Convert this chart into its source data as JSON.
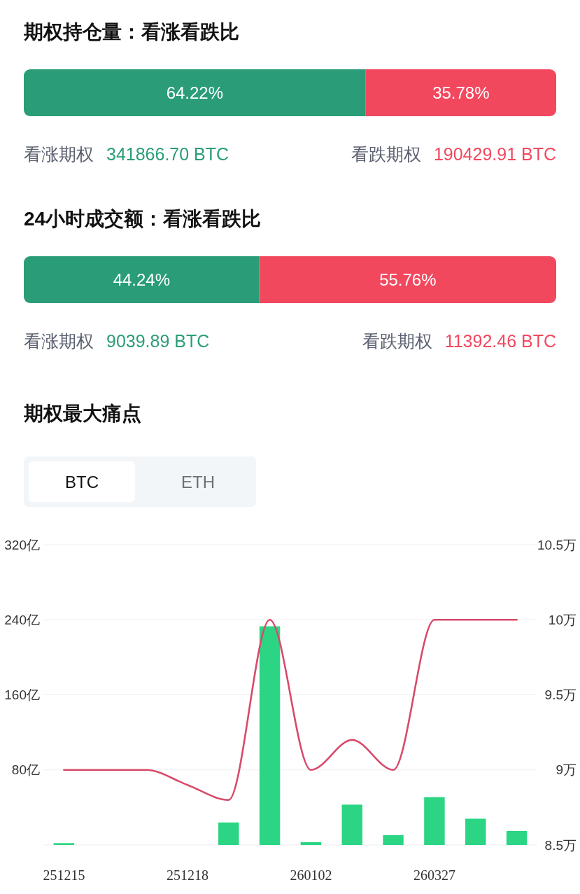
{
  "chart_data": [
    {
      "type": "bar",
      "orientation": "horizontal",
      "stacked": true,
      "title": "期权持仓量：看涨看跌比",
      "categories": [
        null
      ],
      "xlim": [
        0,
        100
      ],
      "series": [
        {
          "color": "#2a9d78",
          "values": [
            64.22
          ],
          "value_labels": [
            "64.22%"
          ]
        },
        {
          "color": "#f2485e",
          "values": [
            35.78
          ],
          "value_labels": [
            "35.78%"
          ]
        }
      ],
      "annotations": [
        "看涨期权",
        "341866.70 BTC",
        "看跌期权",
        "190429.91 BTC"
      ]
    },
    {
      "type": "bar",
      "orientation": "horizontal",
      "stacked": true,
      "title": "24小时成交额：看涨看跌比",
      "categories": [
        null
      ],
      "xlim": [
        0,
        100
      ],
      "series": [
        {
          "color": "#2a9d78",
          "values": [
            44.24
          ],
          "value_labels": [
            "44.24%"
          ]
        },
        {
          "color": "#f2485e",
          "values": [
            55.76
          ],
          "value_labels": [
            "55.76%"
          ]
        }
      ],
      "annotations": [
        "看涨期权",
        "9039.89 BTC",
        "看跌期权",
        "11392.46 BTC"
      ]
    },
    {
      "type": "bar",
      "title": "期权最大痛点",
      "categories": [
        "251215",
        null,
        null,
        "251218",
        null,
        null,
        "260102",
        null,
        null,
        "260327",
        null,
        null
      ],
      "series": [
        {
          "type": "bar",
          "color": "#2bd584",
          "values": [
            2,
            0,
            0,
            0,
            24,
            233,
            3,
            43,
            10.5,
            51,
            28,
            15
          ]
        },
        {
          "type": "line",
          "axis": "y2",
          "color": "#d84a6b",
          "values": [
            9,
            9,
            9,
            8.9,
            8.8,
            10,
            9,
            9.2,
            9,
            10,
            10,
            10
          ]
        }
      ],
      "ylim": [
        0,
        320
      ],
      "yticks": [
        {
          "value": 0,
          "label": null
        },
        {
          "value": 80,
          "label": "80亿"
        },
        {
          "value": 160,
          "label": "160亿"
        },
        {
          "value": 240,
          "label": "240亿"
        },
        {
          "value": 320,
          "label": "320亿"
        }
      ],
      "y2lim": [
        8.5,
        10.5
      ],
      "y2ticks": [
        {
          "value": 8.5,
          "label": "8.5万"
        },
        {
          "value": 9,
          "label": "9万"
        },
        {
          "value": 9.5,
          "label": "9.5万"
        },
        {
          "value": 10,
          "label": "10万"
        },
        {
          "value": 10.5,
          "label": "10.5万"
        }
      ],
      "grid": "y",
      "annotations": [
        "BTC",
        "ETH"
      ]
    }
  ]
}
